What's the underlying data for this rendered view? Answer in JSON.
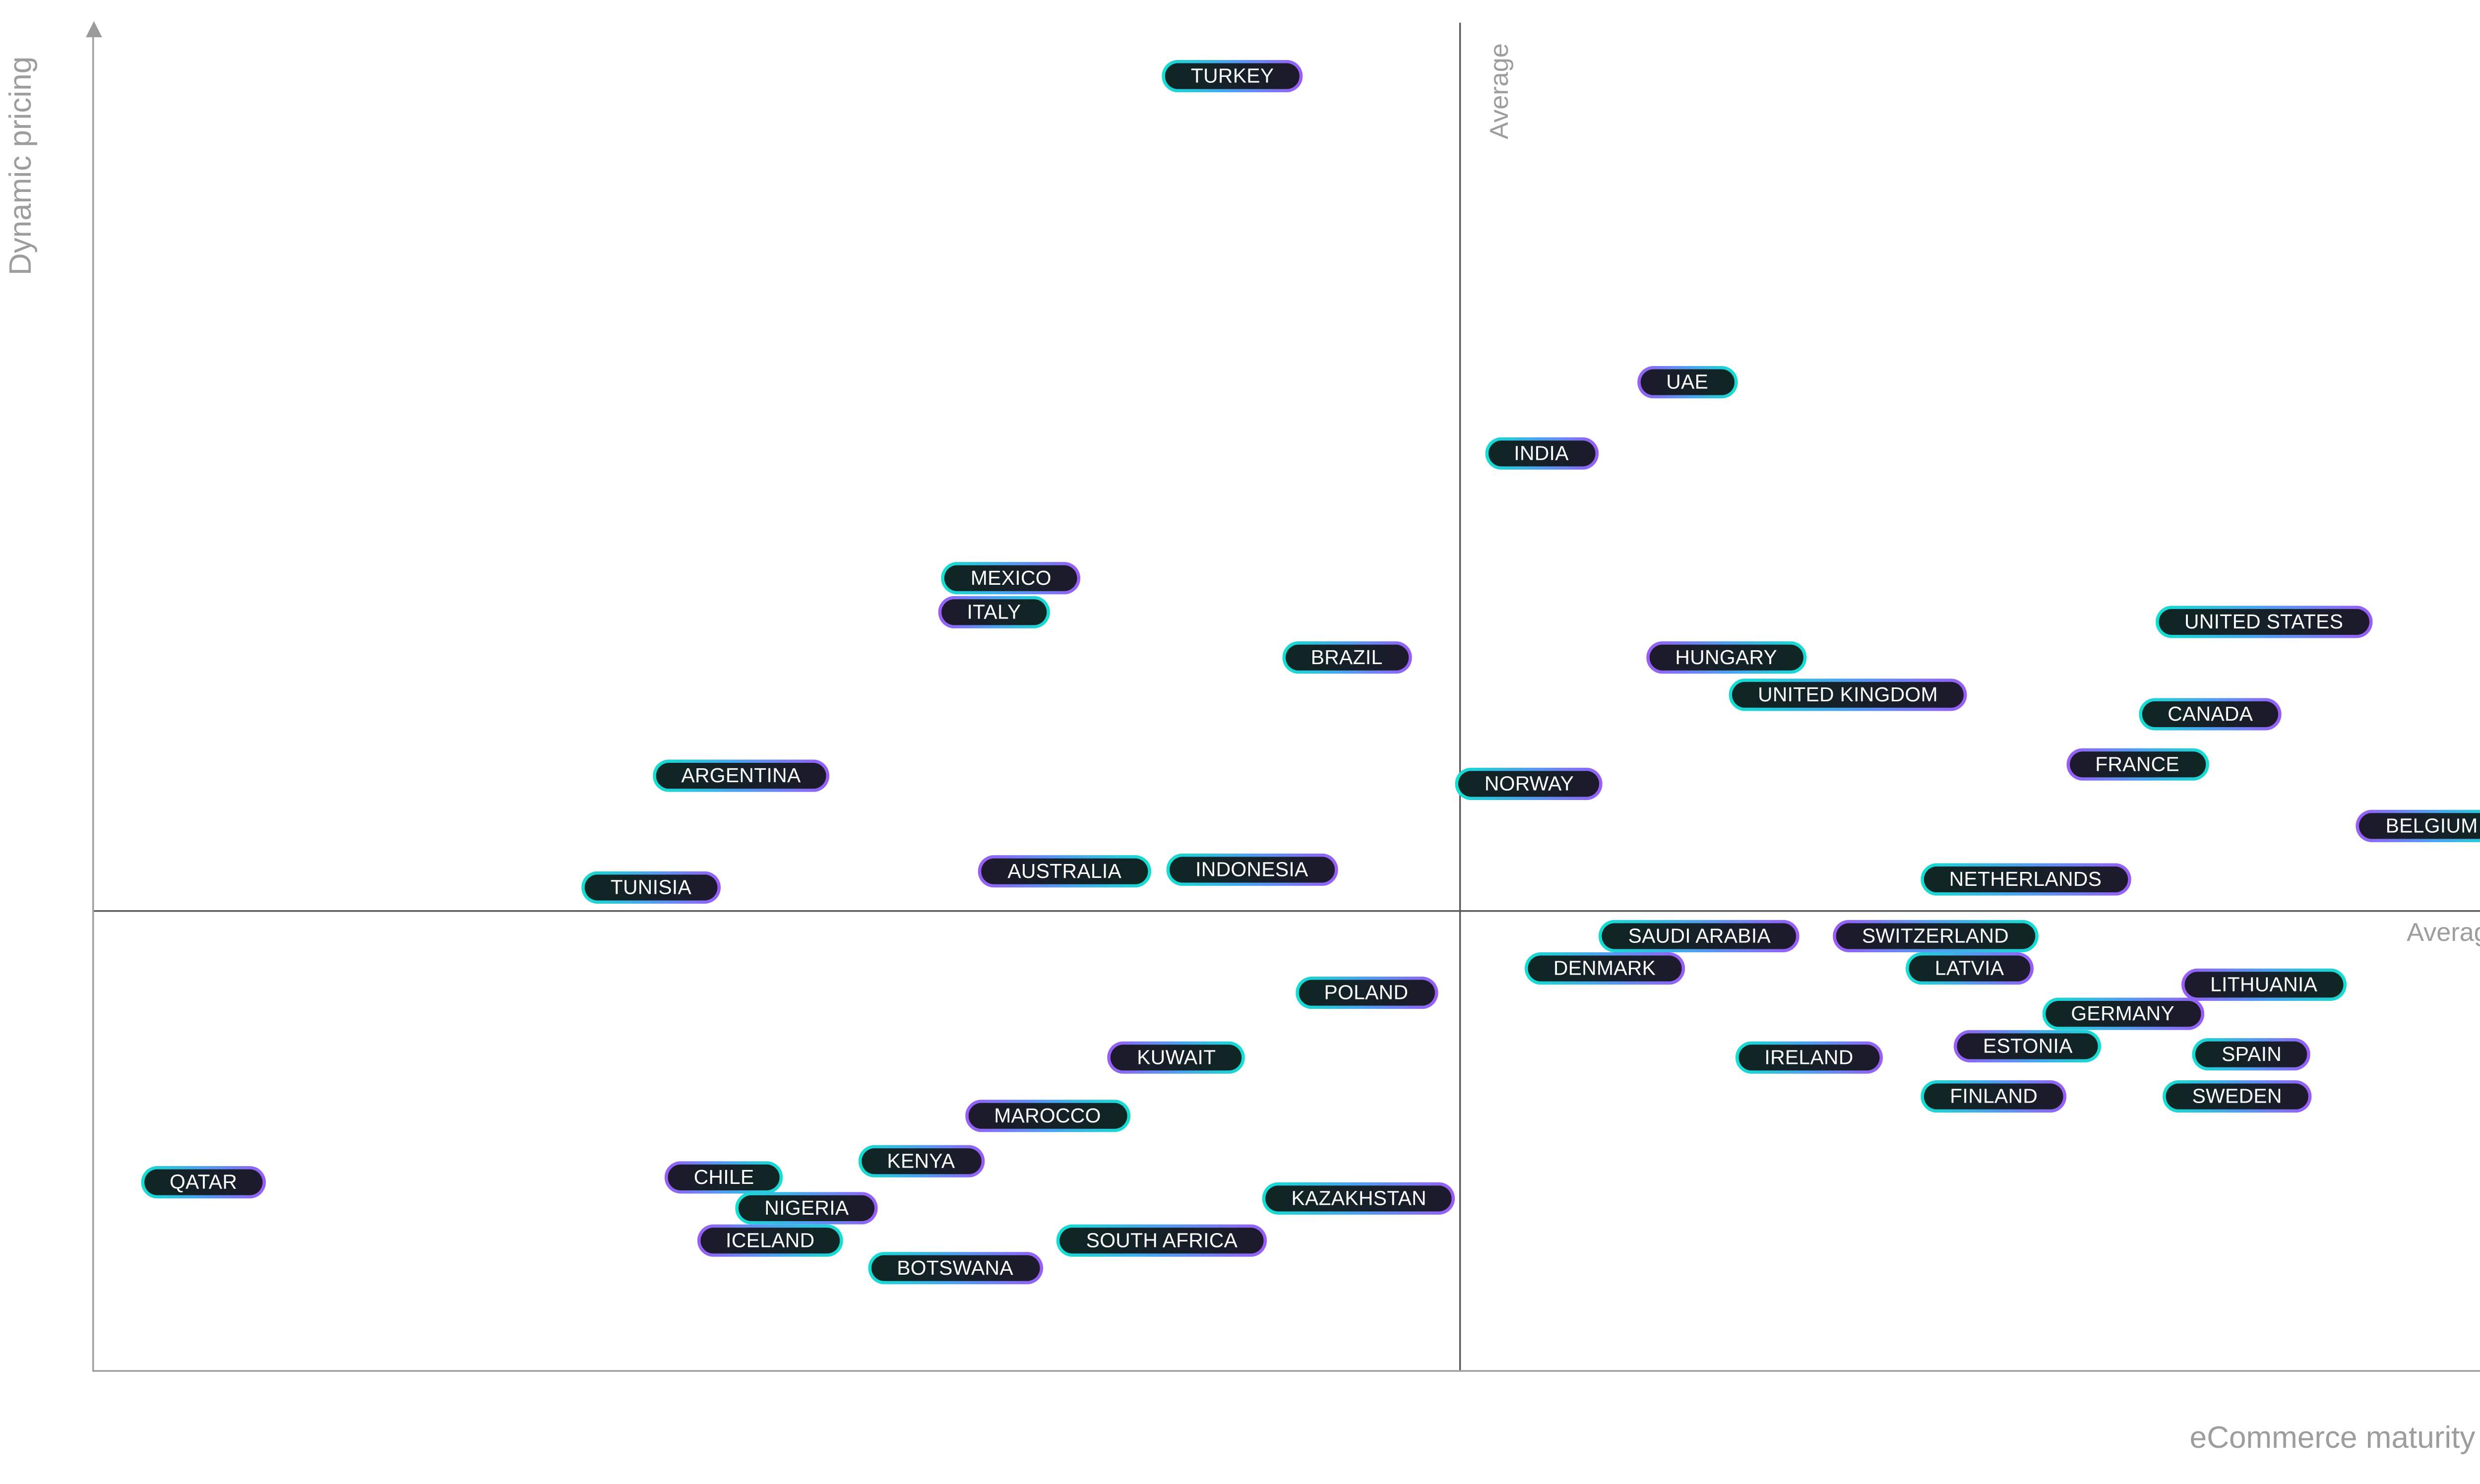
{
  "chart_data": {
    "type": "scatter",
    "title": "",
    "xlabel": "eCommerce maturity",
    "ylabel": "Dynamic pricing",
    "xlim": [
      0,
      100
    ],
    "ylim": [
      0,
      100
    ],
    "average_x": 56.1,
    "average_y": 34.1,
    "average_x_label": "Average",
    "average_y_label": "Average",
    "grid": false,
    "points": [
      {
        "label": "TURKEY",
        "x": 46.8,
        "y": 96.0
      },
      {
        "label": "UAE",
        "x": 65.5,
        "y": 73.3
      },
      {
        "label": "INDIA",
        "x": 59.5,
        "y": 68.0
      },
      {
        "label": "MEXICO",
        "x": 37.7,
        "y": 58.8
      },
      {
        "label": "ITALY",
        "x": 37.0,
        "y": 56.3
      },
      {
        "label": "BRAZIL",
        "x": 51.5,
        "y": 52.9
      },
      {
        "label": "UNITED STATES",
        "x": 89.2,
        "y": 55.5
      },
      {
        "label": "HUNGARY",
        "x": 67.1,
        "y": 52.9
      },
      {
        "label": "UNITED KINGDOM",
        "x": 72.1,
        "y": 50.1
      },
      {
        "label": "CANADA",
        "x": 87.0,
        "y": 48.7
      },
      {
        "label": "FRANCE",
        "x": 84.0,
        "y": 45.0
      },
      {
        "label": "ARGENTINA",
        "x": 26.6,
        "y": 44.1
      },
      {
        "label": "NORWAY",
        "x": 59.0,
        "y": 43.5
      },
      {
        "label": "BELGIUM",
        "x": 96.1,
        "y": 40.4
      },
      {
        "label": "NETHERLANDS",
        "x": 79.4,
        "y": 36.4
      },
      {
        "label": "TUNISIA",
        "x": 22.9,
        "y": 35.8
      },
      {
        "label": "AUSTRALIA",
        "x": 39.9,
        "y": 37.0
      },
      {
        "label": "INDONESIA",
        "x": 47.6,
        "y": 37.1
      },
      {
        "label": "SAUDI ARABIA",
        "x": 66.0,
        "y": 32.2
      },
      {
        "label": "SWITZERLAND",
        "x": 75.7,
        "y": 32.2
      },
      {
        "label": "DENMARK",
        "x": 62.1,
        "y": 29.8
      },
      {
        "label": "LATVIA",
        "x": 77.1,
        "y": 29.8
      },
      {
        "label": "LITHUANIA",
        "x": 89.2,
        "y": 28.6
      },
      {
        "label": "POLAND",
        "x": 52.3,
        "y": 28.0
      },
      {
        "label": "GERMANY",
        "x": 83.4,
        "y": 26.4
      },
      {
        "label": "ESTONIA",
        "x": 79.5,
        "y": 24.0
      },
      {
        "label": "IRELAND",
        "x": 70.5,
        "y": 23.2
      },
      {
        "label": "SPAIN",
        "x": 88.7,
        "y": 23.4
      },
      {
        "label": "KUWAIT",
        "x": 44.5,
        "y": 23.2
      },
      {
        "label": "FINLAND",
        "x": 78.1,
        "y": 20.3
      },
      {
        "label": "SWEDEN",
        "x": 88.1,
        "y": 20.3
      },
      {
        "label": "MAROCCO",
        "x": 39.2,
        "y": 18.9
      },
      {
        "label": "KENYA",
        "x": 34.0,
        "y": 15.5
      },
      {
        "label": "QATAR",
        "x": 4.5,
        "y": 13.9
      },
      {
        "label": "CHILE",
        "x": 25.9,
        "y": 14.3
      },
      {
        "label": "KAZAKHSTAN",
        "x": 52.0,
        "y": 12.7
      },
      {
        "label": "NIGERIA",
        "x": 29.3,
        "y": 12.0
      },
      {
        "label": "ICELAND",
        "x": 27.8,
        "y": 9.6
      },
      {
        "label": "SOUTH AFRICA",
        "x": 43.9,
        "y": 9.6
      },
      {
        "label": "BOTSWANA",
        "x": 35.4,
        "y": 7.6
      }
    ]
  },
  "colors": {
    "axis": "#9a9b9b",
    "pill_start": "#12e0d0",
    "pill_end": "#9a5cf6",
    "pill_fill": "#14202a"
  }
}
